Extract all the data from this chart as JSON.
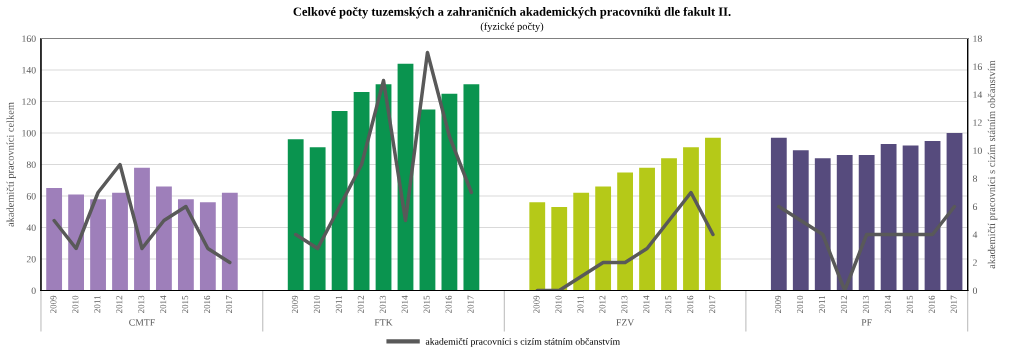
{
  "chart_data": {
    "type": "bar",
    "title": "Celkové počty tuzemských a zahraničních akademických pracovníků dle fakult II.",
    "subtitle": "(fyzické počty)",
    "ylabel": "akademičtí pracovníci celkem",
    "y2label": "akademičtí pracovníci s cizím státním občanstvím",
    "categories": [
      "2009",
      "2010",
      "2011",
      "2012",
      "2013",
      "2014",
      "2015",
      "2016",
      "2017",
      null,
      null,
      "2009",
      "2010",
      "2011",
      "2012",
      "2013",
      "2014",
      "2015",
      "2016",
      "2017",
      null,
      null,
      "2009",
      "2010",
      "2011",
      "2012",
      "2013",
      "2014",
      "2015",
      "2016",
      "2017",
      null,
      null,
      "2009",
      "2010",
      "2011",
      "2012",
      "2013",
      "2014",
      "2015",
      "2016",
      "2017"
    ],
    "annotations": [
      "CMTF",
      "FTK",
      "FZV",
      "PF"
    ],
    "series": [
      {
        "colors": [
          "#9e7fba",
          "#9e7fba",
          "#9e7fba",
          "#9e7fba",
          "#9e7fba",
          "#9e7fba",
          "#9e7fba",
          "#9e7fba",
          "#9e7fba",
          "#ffffff",
          "#ffffff",
          "#0a944f",
          "#0a944f",
          "#0a944f",
          "#0a944f",
          "#0a944f",
          "#0a944f",
          "#0a944f",
          "#0a944f",
          "#0a944f",
          "#ffffff",
          "#ffffff",
          "#b5c918",
          "#b5c918",
          "#b5c918",
          "#b5c918",
          "#b5c918",
          "#b5c918",
          "#b5c918",
          "#b5c918",
          "#b5c918",
          "#ffffff",
          "#ffffff",
          "#564b7d",
          "#564b7d",
          "#564b7d",
          "#564b7d",
          "#564b7d",
          "#564b7d",
          "#564b7d",
          "#564b7d",
          "#564b7d"
        ],
        "values": [
          65,
          61,
          58,
          62,
          78,
          66,
          58,
          56,
          62,
          null,
          null,
          96,
          91,
          114,
          126,
          131,
          144,
          115,
          125,
          131,
          null,
          null,
          56,
          53,
          62,
          66,
          75,
          78,
          84,
          91,
          97,
          null,
          null,
          97,
          89,
          84,
          86,
          86,
          93,
          92,
          95,
          100
        ]
      },
      {
        "type": "line",
        "name": "akademičtí pracovníci s cizím státním občanstvím",
        "color": "#595959",
        "axis": "y2",
        "values": [
          5,
          3,
          7,
          9,
          3,
          5,
          6,
          3,
          2,
          null,
          null,
          4,
          3,
          6,
          9,
          15,
          5,
          17,
          11,
          7,
          null,
          null,
          0,
          0,
          1,
          2,
          2,
          3,
          5,
          7,
          4,
          null,
          null,
          6,
          5,
          4,
          0,
          4,
          4,
          4,
          4,
          6
        ]
      }
    ],
    "ylim": [
      0,
      160
    ],
    "yticks": [
      0,
      20,
      40,
      60,
      80,
      100,
      120,
      140,
      160
    ],
    "y2lim": [
      0,
      18
    ],
    "y2ticks": [
      0,
      2,
      4,
      6,
      8,
      10,
      12,
      14,
      16,
      18
    ],
    "grid": "y",
    "legend": "bottom",
    "line_style": "solid",
    "marker": "none"
  }
}
